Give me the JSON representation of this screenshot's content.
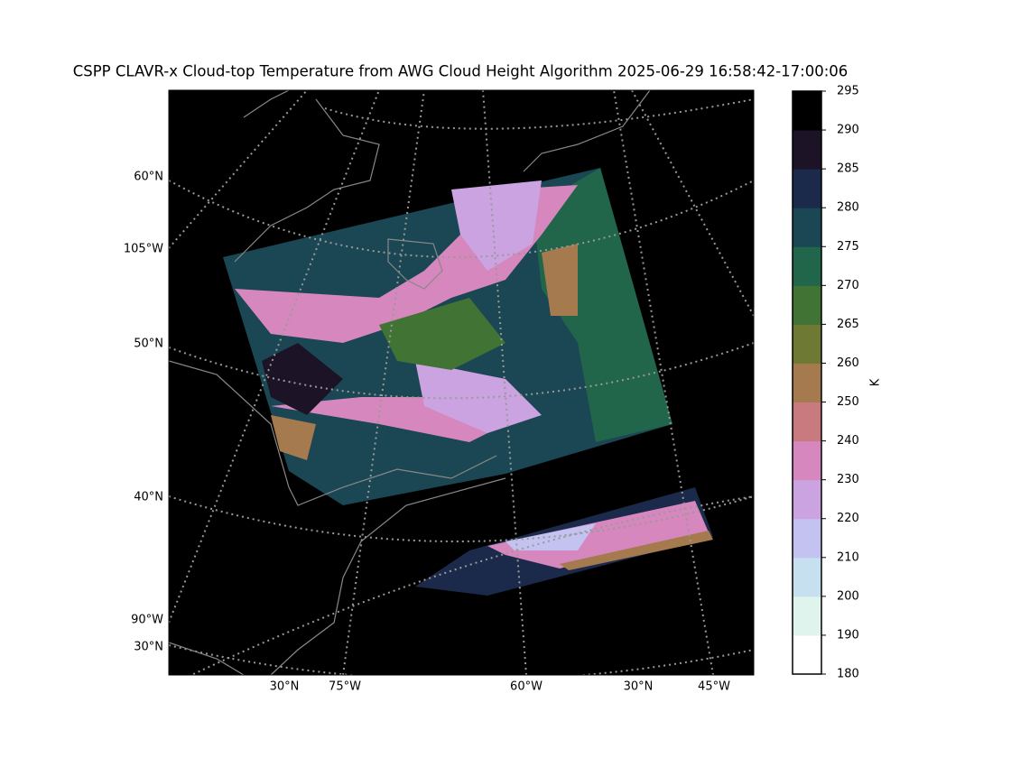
{
  "title": "CSPP CLAVR-x Cloud-top Temperature from AWG Cloud Height Algorithm 2025-06-29 16:58:42-17:00:06",
  "map": {
    "left_labels": [
      "60°N",
      "105°W",
      "50°N",
      "40°N",
      "90°W",
      "30°N"
    ],
    "bottom_labels": [
      "30°N",
      "75°W",
      "60°W",
      "30°N",
      "45°W"
    ]
  },
  "colorbar": {
    "label": "K",
    "ticks": [
      180,
      190,
      200,
      210,
      220,
      230,
      240,
      250,
      260,
      265,
      270,
      275,
      280,
      285,
      290,
      295
    ],
    "colors": [
      "#ffffff",
      "#dff4ec",
      "#c6e0f0",
      "#c4c2f0",
      "#cba3e0",
      "#d687bd",
      "#c97a7e",
      "#a57a4f",
      "#6e7a33",
      "#417334",
      "#21654a",
      "#1a4753",
      "#1b2a4a",
      "#1c1426",
      "#000000"
    ]
  }
}
